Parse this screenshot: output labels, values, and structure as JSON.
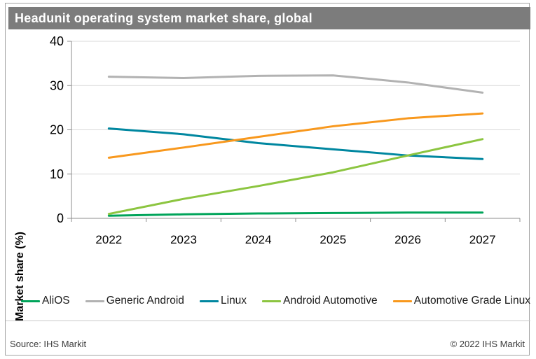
{
  "title": "Headunit operating system market share, global",
  "footer": {
    "source": "Source: IHS Markit",
    "copyright": "© 2022 IHS Markit"
  },
  "colors": {
    "title_bar": "#7c7c7c",
    "gridline": "#d9d9d9",
    "axis": "#8c8c8c",
    "frame_border": "#a3a3a3",
    "alios_green": "#00a45a",
    "generic_android_gray": "#b2b2b2",
    "linux_teal": "#0087a0",
    "android_automotive_green": "#8cc540",
    "agl_orange": "#f8981d"
  },
  "chart_data": {
    "type": "line",
    "title": "Headunit operating system market share, global",
    "xlabel": "",
    "ylabel": "Market share (%)",
    "categories": [
      "2022",
      "2023",
      "2024",
      "2025",
      "2026",
      "2027"
    ],
    "ylim": [
      0,
      40
    ],
    "yticks": [
      0,
      10,
      20,
      30,
      40
    ],
    "grid": true,
    "legend_position": "bottom",
    "series": [
      {
        "name": "AliOS",
        "color": "#00a45a",
        "values": [
          0.6,
          0.9,
          1.1,
          1.2,
          1.3,
          1.3
        ]
      },
      {
        "name": "Generic Android",
        "color": "#b2b2b2",
        "values": [
          32.0,
          31.7,
          32.2,
          32.3,
          30.7,
          28.4
        ]
      },
      {
        "name": "Linux",
        "color": "#0087a0",
        "values": [
          20.3,
          19.0,
          17.0,
          15.6,
          14.2,
          13.4
        ]
      },
      {
        "name": "Android Automotive",
        "color": "#8cc540",
        "values": [
          1.0,
          4.4,
          7.3,
          10.4,
          14.2,
          17.9
        ]
      },
      {
        "name": "Automotive Grade Linux",
        "color": "#f8981d",
        "values": [
          13.7,
          16.0,
          18.4,
          20.8,
          22.6,
          23.7
        ]
      }
    ]
  }
}
